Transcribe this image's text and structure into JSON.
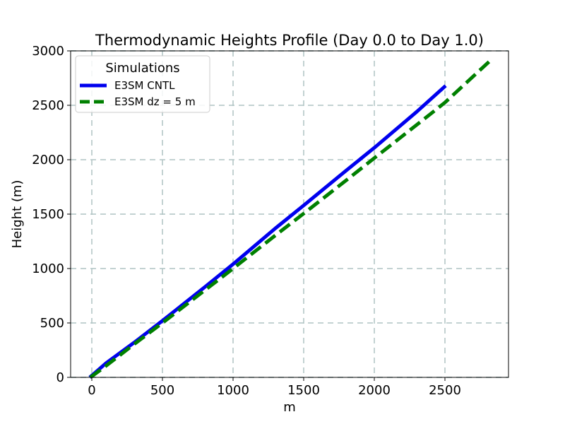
{
  "chart_data": {
    "type": "line",
    "title": "Thermodynamic Heights Profile (Day 0.0 to Day 1.0)",
    "xlabel": "m",
    "ylabel": "Height (m)",
    "xlim": [
      -150,
      2950
    ],
    "ylim": [
      0,
      3000
    ],
    "xticks": [
      0,
      500,
      1000,
      1500,
      2000,
      2500
    ],
    "yticks": [
      0,
      500,
      1000,
      1500,
      2000,
      2500,
      3000
    ],
    "xtick_labels": [
      "0",
      "500",
      "1000",
      "1500",
      "2000",
      "2500"
    ],
    "ytick_labels": [
      "0",
      "500",
      "1000",
      "1500",
      "2000",
      "2500",
      "3000"
    ],
    "grid": true,
    "legend": {
      "title": "Simulations",
      "location": "upper left"
    },
    "series": [
      {
        "name": "E3SM CNTL",
        "color": "#0000ee",
        "style": "solid",
        "x": [
          -15,
          30,
          100,
          300,
          500,
          800,
          1000,
          1300,
          1500,
          1800,
          2000,
          2300,
          2505
        ],
        "y": [
          0,
          50,
          130,
          320,
          520,
          830,
          1040,
          1370,
          1580,
          1900,
          2110,
          2440,
          2680
        ]
      },
      {
        "name": "E3SM dz = 5 m",
        "color": "#008000",
        "style": "dashed",
        "x": [
          -10,
          0,
          100,
          300,
          500,
          800,
          1000,
          1300,
          1500,
          1800,
          2000,
          2300,
          2500,
          2820
        ],
        "y": [
          0,
          10,
          105,
          305,
          500,
          800,
          1000,
          1305,
          1505,
          1810,
          2015,
          2320,
          2525,
          2910
        ]
      }
    ]
  }
}
